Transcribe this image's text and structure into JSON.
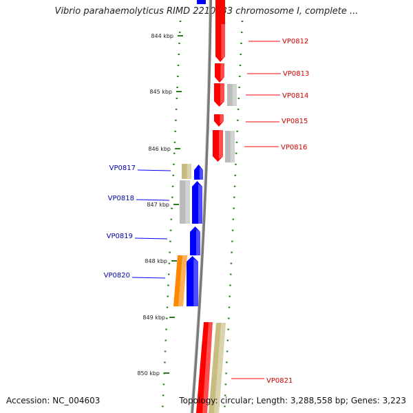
{
  "title": "Vibrio parahaemolyticus RIMD 2210633 chromosome I, complete ...",
  "footer": {
    "accession": "Accession: NC_004603",
    "summary": "Topology: circular; Length: 3,288,558 bp; Genes: 3,223"
  },
  "colors": {
    "forward_gene": "#ff0000",
    "reverse_gene": "#0000ff",
    "gray_feature": "#bbbbbb",
    "tan_feature": "#c8bc80",
    "orange_feature": "#ff8800",
    "tick": "#2b7a1f",
    "backbone": "#888888"
  },
  "ticks": [
    "844 kbp",
    "845 kbp",
    "846 kbp",
    "847 kbp",
    "848 kbp",
    "849 kbp",
    "850 kbp"
  ],
  "forward_labels": [
    "VP0812",
    "VP0813",
    "VP0814",
    "VP0815",
    "VP0816",
    "VP0821"
  ],
  "reverse_labels": [
    "VP0817",
    "VP0818",
    "VP0819",
    "VP0820"
  ]
}
